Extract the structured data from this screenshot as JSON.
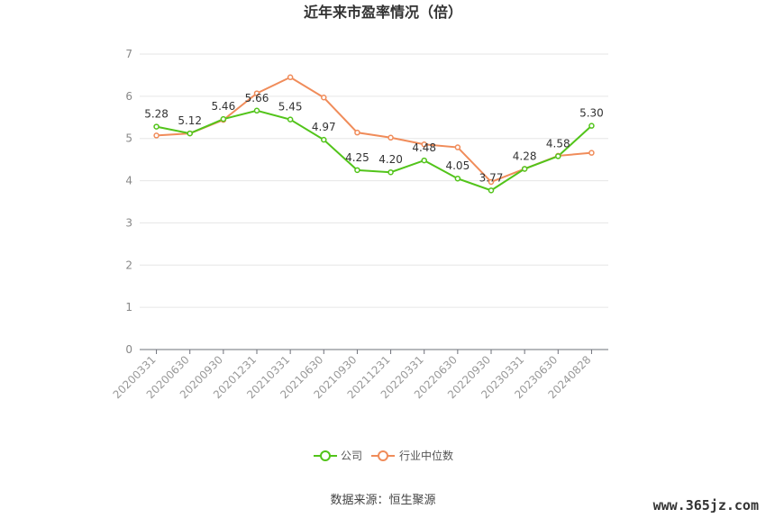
{
  "chart_data": {
    "type": "line",
    "title": "近年来市盈率情况（倍）",
    "categories": [
      "20200331",
      "20200630",
      "20200930",
      "20201231",
      "20210331",
      "20210630",
      "20210930",
      "20211231",
      "20220331",
      "20220630",
      "20220930",
      "20230331",
      "20230630",
      "20240828"
    ],
    "ylim": [
      0,
      7
    ],
    "yticks": [
      0,
      1,
      2,
      3,
      4,
      5,
      6,
      7
    ],
    "grid": true,
    "legend_position": "bottom",
    "series": [
      {
        "name": "公司",
        "color": "#52c41a",
        "values": [
          5.28,
          5.12,
          5.46,
          5.66,
          5.45,
          4.97,
          4.25,
          4.2,
          4.48,
          4.05,
          3.77,
          4.28,
          4.58,
          5.3
        ],
        "labels": [
          "5.28",
          "5.12",
          "5.46",
          "5.66",
          "5.45",
          "4.97",
          "4.25",
          "4.20",
          "4.48",
          "4.05",
          "3.77",
          "4.28",
          "4.58",
          "5.30"
        ]
      },
      {
        "name": "行业中位数",
        "color": "#f08c5a",
        "values": [
          5.07,
          5.12,
          5.44,
          6.07,
          6.45,
          5.97,
          5.14,
          5.02,
          4.86,
          4.79,
          3.97,
          4.28,
          4.59,
          4.66
        ]
      }
    ]
  },
  "source_text": "数据来源：恒生聚源",
  "watermark_text": "www.365jz.com"
}
